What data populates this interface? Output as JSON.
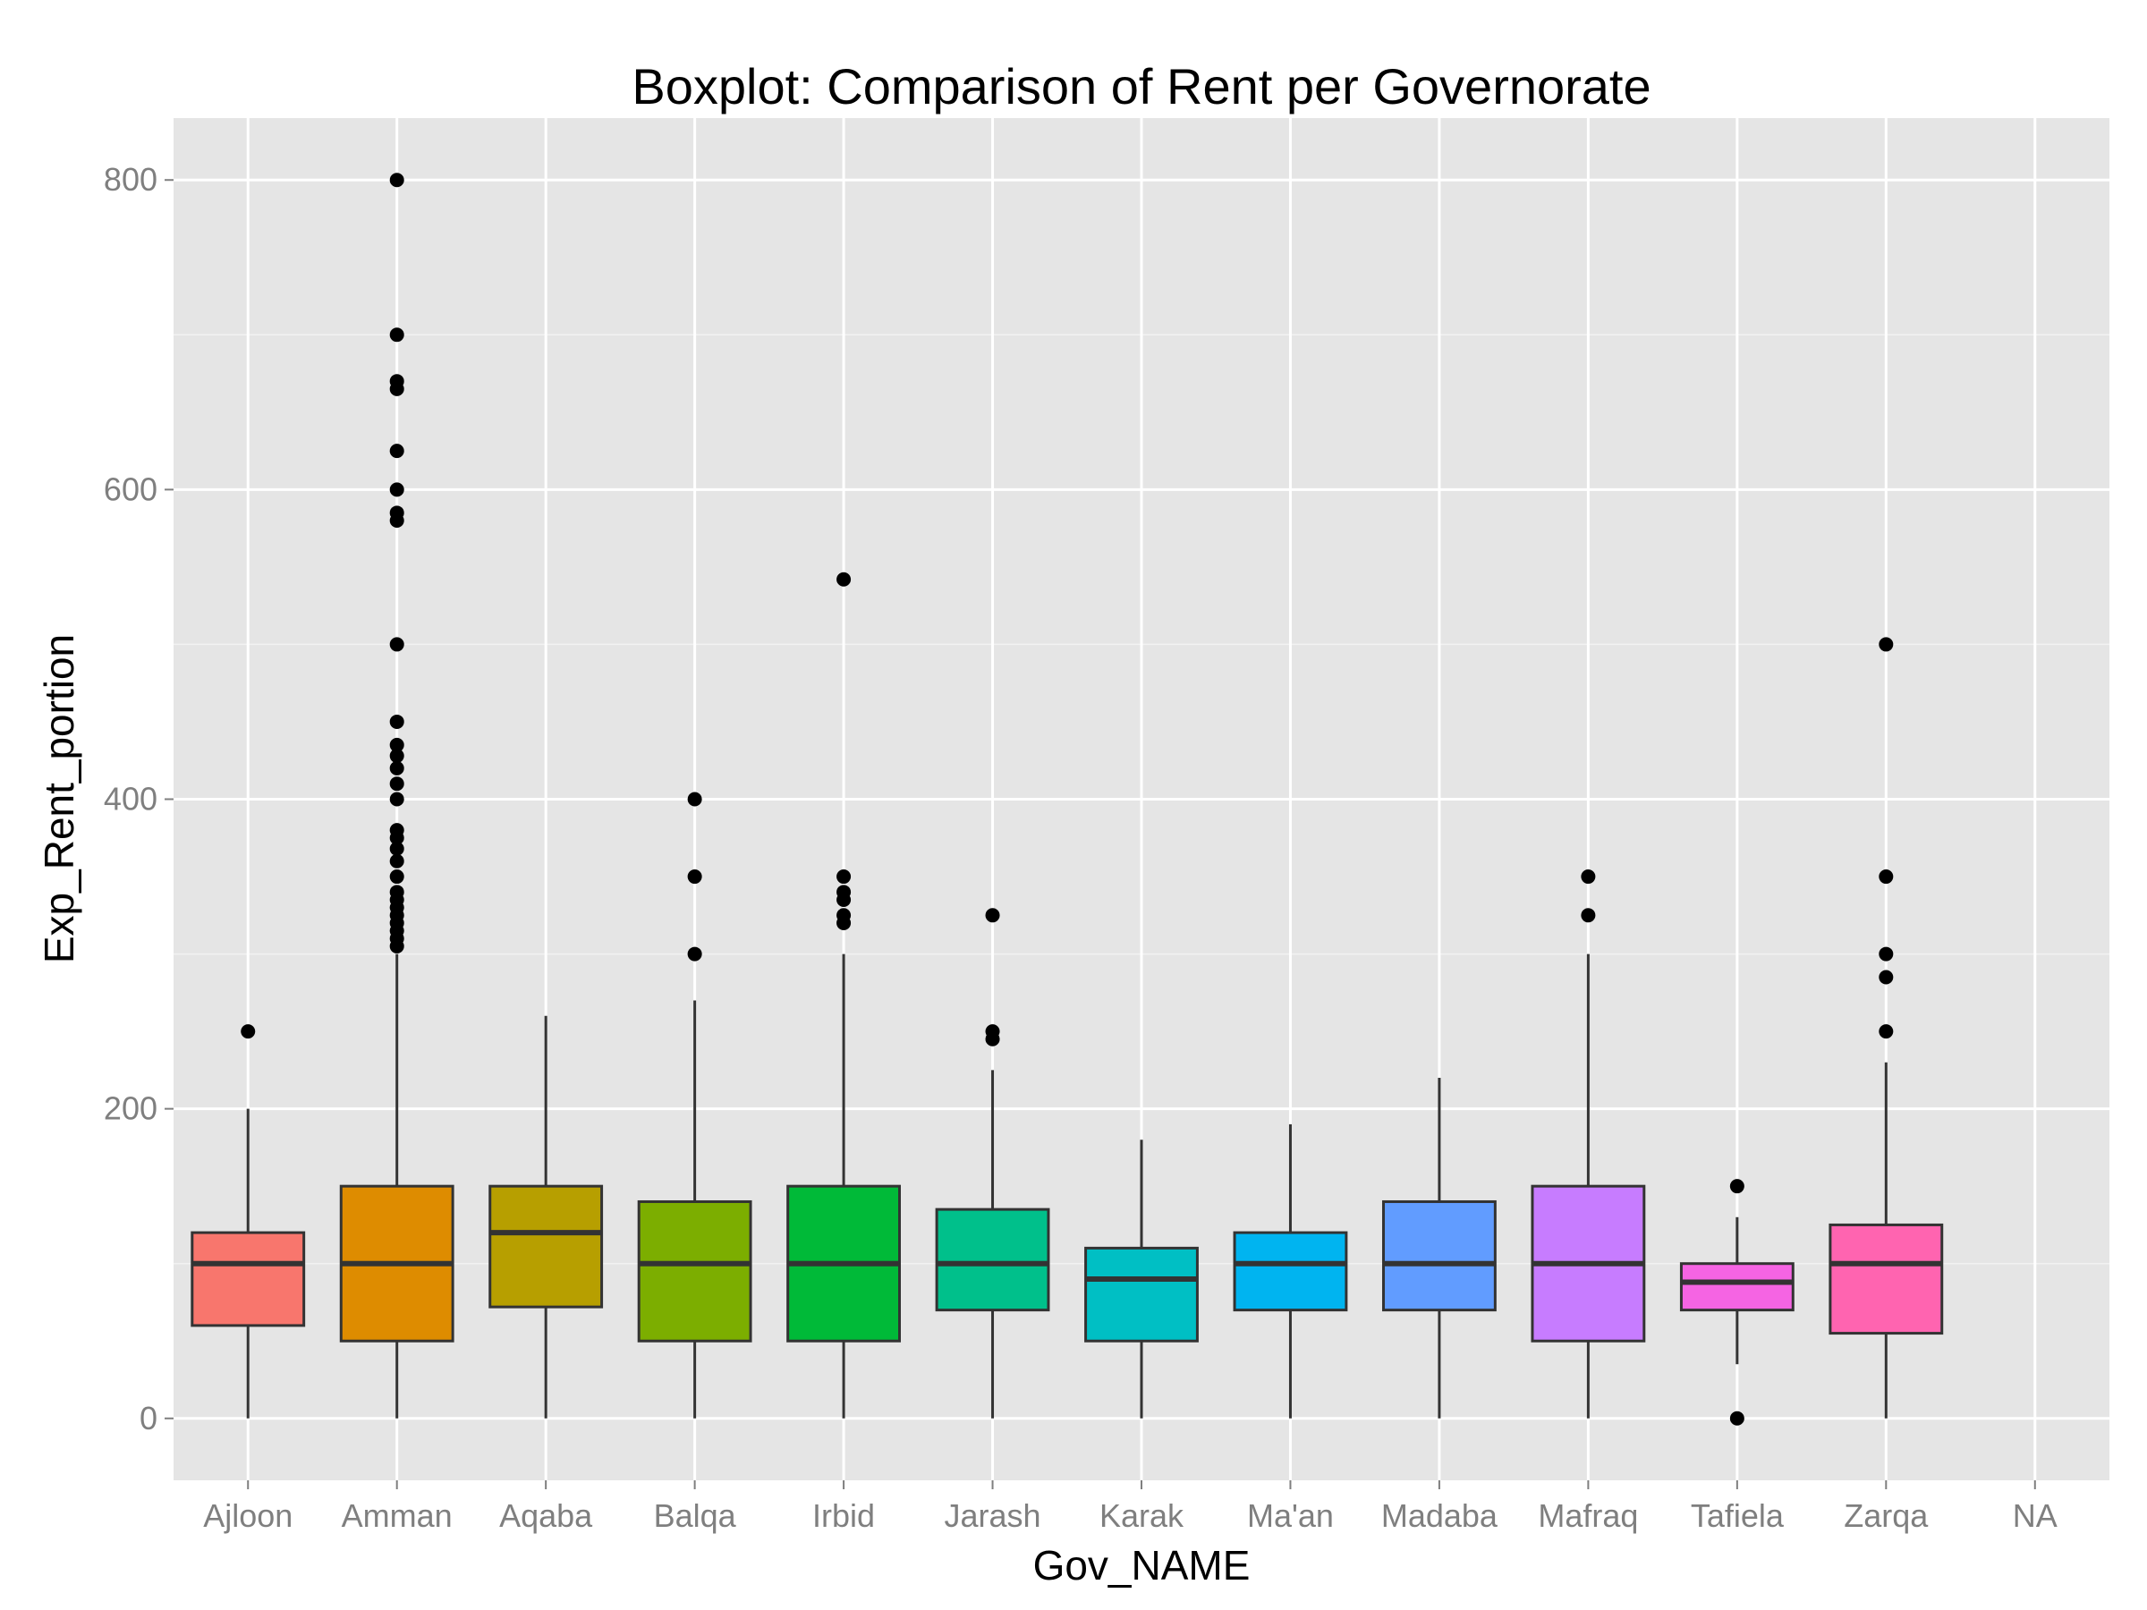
{
  "chart_data": {
    "type": "boxplot",
    "title": "Boxplot: Comparison of Rent per Governorate",
    "xlabel": "Gov_NAME",
    "ylabel": "Exp_Rent_portion",
    "ylim": [
      -40,
      840
    ],
    "yticks": [
      0,
      200,
      400,
      600,
      800
    ],
    "grid": true,
    "categories": [
      "Ajloon",
      "Amman",
      "Aqaba",
      "Balqa",
      "Irbid",
      "Jarash",
      "Karak",
      "Ma'an",
      "Madaba",
      "Mafraq",
      "Tafiela",
      "Zarqa",
      "NA"
    ],
    "boxes": [
      {
        "category": "Ajloon",
        "color": "#F8766D",
        "whisker_low": 0,
        "q1": 60,
        "median": 100,
        "q3": 120,
        "whisker_high": 200,
        "outliers": [
          250
        ]
      },
      {
        "category": "Amman",
        "color": "#DE8C00",
        "whisker_low": 0,
        "q1": 50,
        "median": 100,
        "q3": 150,
        "whisker_high": 300,
        "outliers": [
          800,
          700,
          670,
          665,
          625,
          600,
          585,
          580,
          500,
          450,
          435,
          428,
          420,
          410,
          400,
          380,
          375,
          368,
          360,
          350,
          340,
          335,
          330,
          325,
          320,
          315,
          310,
          305
        ]
      },
      {
        "category": "Aqaba",
        "color": "#B79F00",
        "whisker_low": 0,
        "q1": 72,
        "median": 120,
        "q3": 150,
        "whisker_high": 260,
        "outliers": []
      },
      {
        "category": "Balqa",
        "color": "#7CAE00",
        "whisker_low": 0,
        "q1": 50,
        "median": 100,
        "q3": 140,
        "whisker_high": 270,
        "outliers": [
          400,
          350,
          300
        ]
      },
      {
        "category": "Irbid",
        "color": "#00BA38",
        "whisker_low": 0,
        "q1": 50,
        "median": 100,
        "q3": 150,
        "whisker_high": 300,
        "outliers": [
          542,
          350,
          340,
          335,
          325,
          320
        ]
      },
      {
        "category": "Jarash",
        "color": "#00C08B",
        "whisker_low": 0,
        "q1": 70,
        "median": 100,
        "q3": 135,
        "whisker_high": 225,
        "outliers": [
          325,
          250,
          245
        ]
      },
      {
        "category": "Karak",
        "color": "#00BFC4",
        "whisker_low": 0,
        "q1": 50,
        "median": 90,
        "q3": 110,
        "whisker_high": 180,
        "outliers": []
      },
      {
        "category": "Ma'an",
        "color": "#00B4F0",
        "whisker_low": 0,
        "q1": 70,
        "median": 100,
        "q3": 120,
        "whisker_high": 190,
        "outliers": []
      },
      {
        "category": "Madaba",
        "color": "#619CFF",
        "whisker_low": 0,
        "q1": 70,
        "median": 100,
        "q3": 140,
        "whisker_high": 220,
        "outliers": []
      },
      {
        "category": "Mafraq",
        "color": "#C77CFF",
        "whisker_low": 0,
        "q1": 50,
        "median": 100,
        "q3": 150,
        "whisker_high": 300,
        "outliers": [
          350,
          325
        ]
      },
      {
        "category": "Tafiela",
        "color": "#F564E3",
        "whisker_low": 35,
        "q1": 70,
        "median": 88,
        "q3": 100,
        "whisker_high": 130,
        "outliers": [
          150,
          0
        ]
      },
      {
        "category": "Zarqa",
        "color": "#FF64B0",
        "whisker_low": 0,
        "q1": 55,
        "median": 100,
        "q3": 125,
        "whisker_high": 230,
        "outliers": [
          500,
          350,
          300,
          285,
          250
        ]
      },
      {
        "category": "NA",
        "color": "#7F7F7F",
        "whisker_low": null,
        "q1": null,
        "median": null,
        "q3": null,
        "whisker_high": null,
        "outliers": []
      }
    ]
  }
}
